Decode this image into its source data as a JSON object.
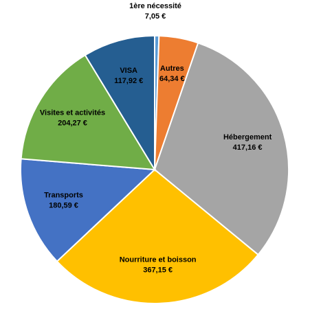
{
  "chart_data": {
    "type": "pie",
    "title": "",
    "start_angle_deg": 0,
    "direction": "clockwise",
    "legend": "none",
    "slices": [
      {
        "label": "1ère nécessité",
        "value": 7.05,
        "value_label": "7,05 €",
        "color": "#5B9BD5"
      },
      {
        "label": "Autres",
        "value": 64.34,
        "value_label": "64,34 €",
        "color": "#ED7D31"
      },
      {
        "label": "Hébergement",
        "value": 417.16,
        "value_label": "417,16 €",
        "color": "#A5A5A5"
      },
      {
        "label": "Nourriture et boisson",
        "value": 367.15,
        "value_label": "367,15 €",
        "color": "#FFC000"
      },
      {
        "label": "Transports",
        "value": 180.59,
        "value_label": "180,59 €",
        "color": "#4472C4"
      },
      {
        "label": "Visites et activités",
        "value": 204.27,
        "value_label": "204,27 €",
        "color": "#70AD47"
      },
      {
        "label": "VISA",
        "value": 117.92,
        "value_label": "117,92 €",
        "color": "#255E91"
      }
    ]
  }
}
